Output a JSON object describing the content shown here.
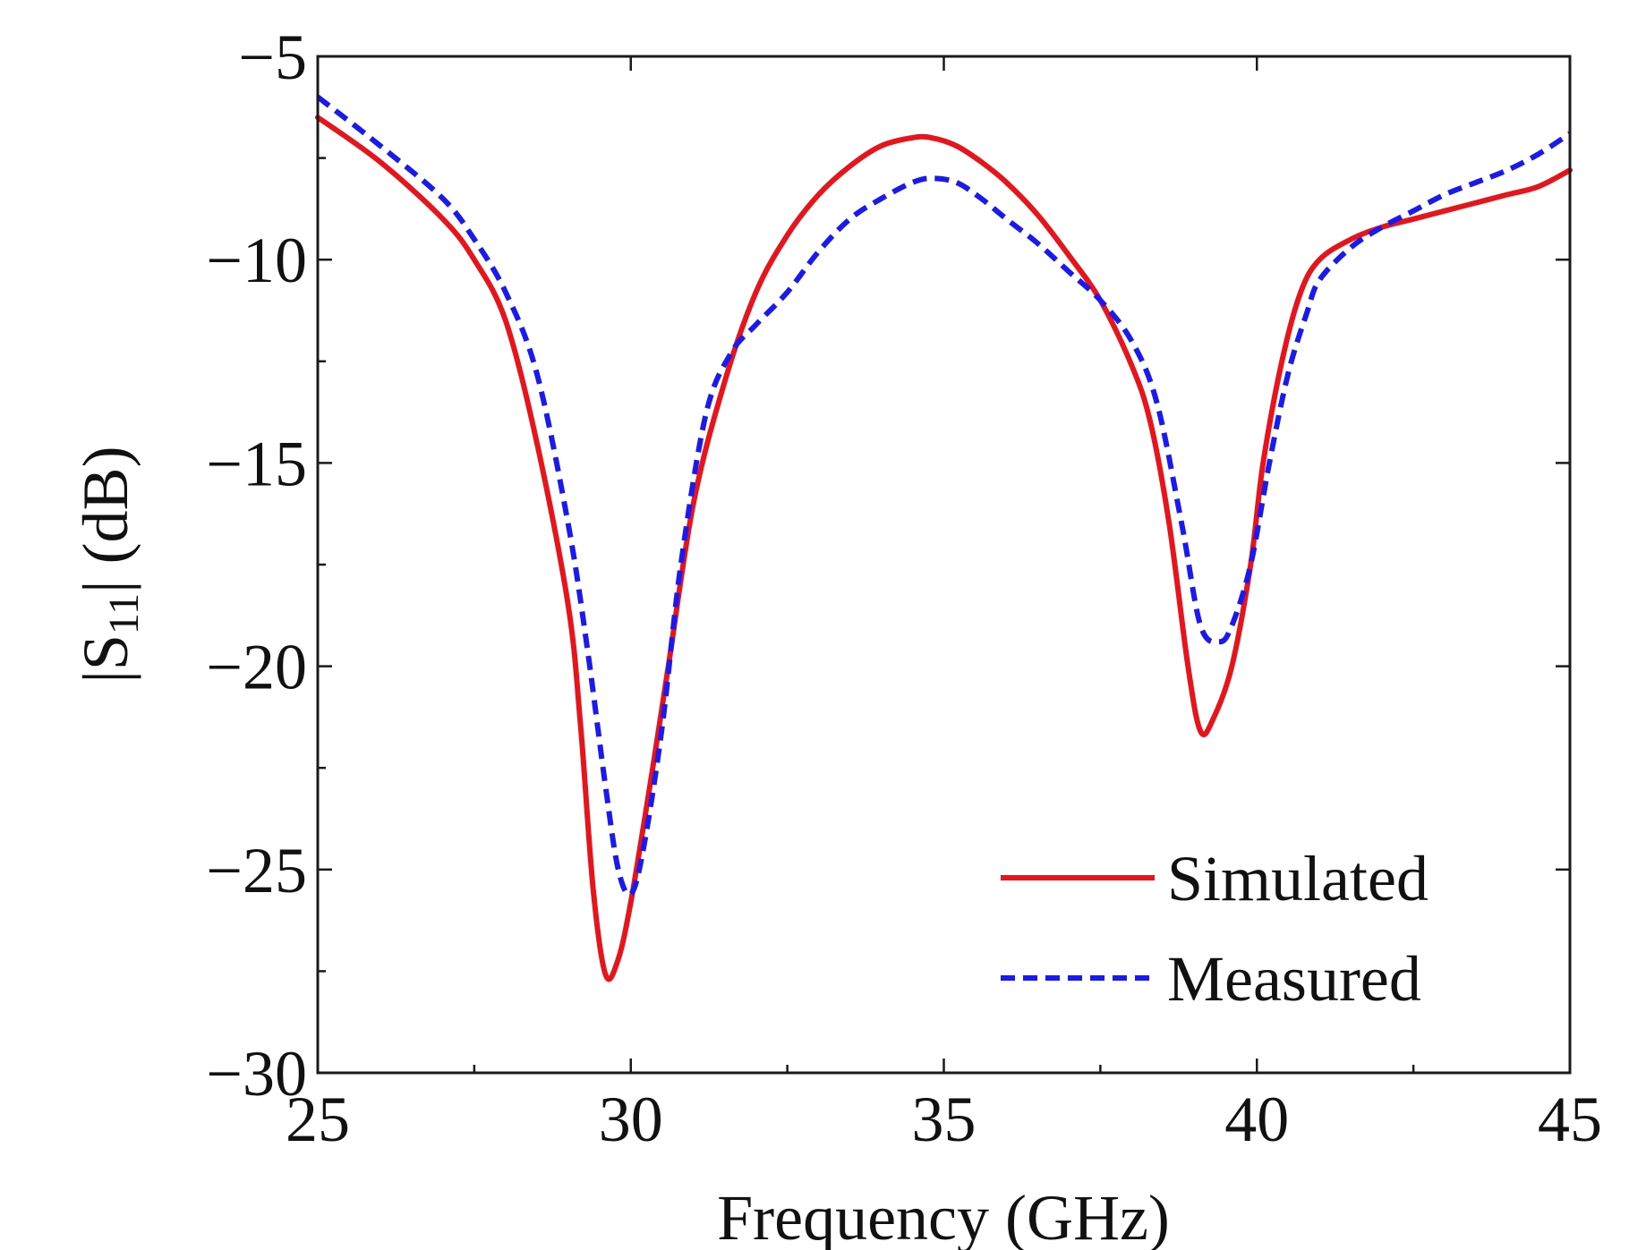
{
  "chart_data": {
    "type": "line",
    "title": "",
    "xlabel": "Frequency (GHz)",
    "ylabel_main": "|S",
    "ylabel_sub": "11",
    "ylabel_tail": "| (dB)",
    "xlim": [
      25,
      45
    ],
    "ylim": [
      -30,
      -5
    ],
    "xticks": [
      25,
      30,
      35,
      40,
      45
    ],
    "yticks": [
      -5,
      -10,
      -15,
      -20,
      -25,
      -30
    ],
    "xtick_labels": [
      "25",
      "30",
      "35",
      "40",
      "45"
    ],
    "ytick_labels": [
      "−5",
      "−10",
      "−15",
      "−20",
      "−25",
      "−30"
    ],
    "x_minor_ticks": [
      27.5,
      32.5,
      37.5,
      42.5
    ],
    "y_minor_ticks": [
      -7.5,
      -12.5,
      -17.5,
      -22.5,
      -27.5
    ],
    "grid": false,
    "legend_position": "bottom-right",
    "series": [
      {
        "name": "Simulated",
        "color": "#e8141c",
        "style": "solid",
        "x": [
          25,
          26,
          27,
          27.5,
          28,
          28.5,
          29,
          29.2,
          29.4,
          29.6,
          29.8,
          30,
          30.3,
          30.6,
          31,
          31.5,
          32,
          32.5,
          33,
          33.5,
          34,
          34.5,
          34.8,
          35.2,
          35.6,
          36,
          36.5,
          37,
          37.5,
          38,
          38.3,
          38.6,
          38.9,
          39.1,
          39.3,
          39.6,
          39.9,
          40.1,
          40.4,
          40.7,
          41,
          41.5,
          42,
          42.5,
          43,
          43.5,
          44,
          44.5,
          45
        ],
        "values": [
          -6.5,
          -7.6,
          -9.0,
          -10.0,
          -11.5,
          -14.5,
          -18.5,
          -21.5,
          -25.5,
          -27.6,
          -27.2,
          -25.8,
          -23.0,
          -20.0,
          -16.0,
          -13.0,
          -10.8,
          -9.4,
          -8.4,
          -7.7,
          -7.2,
          -7.0,
          -7.0,
          -7.2,
          -7.6,
          -8.1,
          -8.9,
          -9.9,
          -11.0,
          -12.6,
          -14.0,
          -16.5,
          -20.0,
          -21.6,
          -21.3,
          -20.0,
          -17.5,
          -15.0,
          -12.5,
          -10.8,
          -10.0,
          -9.5,
          -9.2,
          -9.0,
          -8.8,
          -8.6,
          -8.4,
          -8.2,
          -7.8
        ]
      },
      {
        "name": "Measured",
        "color": "#1a1aee",
        "style": "dashed",
        "x": [
          25,
          26,
          27,
          27.5,
          28,
          28.5,
          29,
          29.3,
          29.6,
          29.8,
          30,
          30.2,
          30.5,
          30.8,
          31.2,
          31.6,
          32,
          32.5,
          33,
          33.5,
          34,
          34.5,
          34.8,
          35.2,
          35.6,
          36,
          36.5,
          37,
          37.5,
          38,
          38.4,
          38.8,
          39.1,
          39.4,
          39.6,
          39.9,
          40.2,
          40.5,
          40.8,
          41,
          41.5,
          42,
          42.5,
          43,
          43.5,
          44,
          44.5,
          45
        ],
        "values": [
          -6.0,
          -7.2,
          -8.5,
          -9.5,
          -10.8,
          -12.8,
          -16.5,
          -19.5,
          -23.0,
          -25.0,
          -25.6,
          -24.5,
          -21.5,
          -17.5,
          -13.8,
          -12.3,
          -11.6,
          -10.8,
          -9.8,
          -9.0,
          -8.5,
          -8.1,
          -8.0,
          -8.1,
          -8.5,
          -9.0,
          -9.6,
          -10.3,
          -11.0,
          -12.0,
          -13.5,
          -16.5,
          -19.0,
          -19.4,
          -19.0,
          -17.5,
          -15.0,
          -12.8,
          -11.3,
          -10.5,
          -9.7,
          -9.2,
          -8.8,
          -8.4,
          -8.1,
          -7.8,
          -7.4,
          -6.9
        ]
      }
    ]
  }
}
